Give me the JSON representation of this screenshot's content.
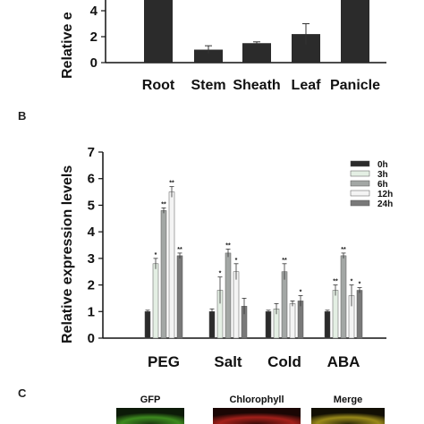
{
  "chart_data": [
    {
      "panel": "",
      "type": "bar",
      "categories": [
        "Root",
        "Stem",
        "Sheath",
        "Leaf",
        "Panicle"
      ],
      "values": [
        5.0,
        1.0,
        1.5,
        2.2,
        5.0
      ],
      "errors": [
        0,
        0.3,
        0.1,
        0.8,
        0
      ],
      "yticks": [
        "0",
        "2",
        "4"
      ],
      "ylim": [
        0,
        6
      ],
      "ylabel": "Relative e",
      "color": "#2b2b2b"
    },
    {
      "panel": "B",
      "type": "bar",
      "categories": [
        "PEG",
        "Salt",
        "Cold",
        "ABA"
      ],
      "ylabel": "Relative expression levels",
      "ylim": [
        0,
        7
      ],
      "yticks": [
        "0",
        "1",
        "2",
        "3",
        "4",
        "5",
        "6",
        "7"
      ],
      "legend_position": "top-right",
      "series": [
        {
          "name": "0h",
          "color": "#2b2b2b",
          "values": [
            1.0,
            1.0,
            1.0,
            1.0
          ],
          "errors": [
            0.05,
            0.1,
            0.05,
            0.05
          ],
          "sig": [
            "",
            "",
            "",
            ""
          ]
        },
        {
          "name": "3h",
          "color": "#e4efe4",
          "values": [
            2.8,
            1.8,
            1.1,
            1.8
          ],
          "errors": [
            0.2,
            0.5,
            0.2,
            0.2
          ],
          "sig": [
            "*",
            "*",
            "",
            "**"
          ]
        },
        {
          "name": "6h",
          "color": "#a3a7a5",
          "values": [
            4.8,
            3.2,
            2.5,
            3.1
          ],
          "errors": [
            0.1,
            0.15,
            0.3,
            0.1
          ],
          "sig": [
            "**",
            "**",
            "**",
            "**"
          ]
        },
        {
          "name": "12h",
          "color": "#f4f4f4",
          "values": [
            5.5,
            2.5,
            1.3,
            1.6
          ],
          "errors": [
            0.2,
            0.3,
            0.1,
            0.4
          ],
          "sig": [
            "**",
            "*",
            "",
            "*"
          ]
        },
        {
          "name": "24h",
          "color": "#797979",
          "values": [
            3.1,
            1.2,
            1.4,
            1.8
          ],
          "errors": [
            0.1,
            0.3,
            0.2,
            0.1
          ],
          "sig": [
            "**",
            "",
            "*",
            "*"
          ]
        }
      ]
    }
  ],
  "panel_c": {
    "letter": "C",
    "labels": [
      "GFP",
      "Chlorophyll",
      "Merge"
    ]
  }
}
